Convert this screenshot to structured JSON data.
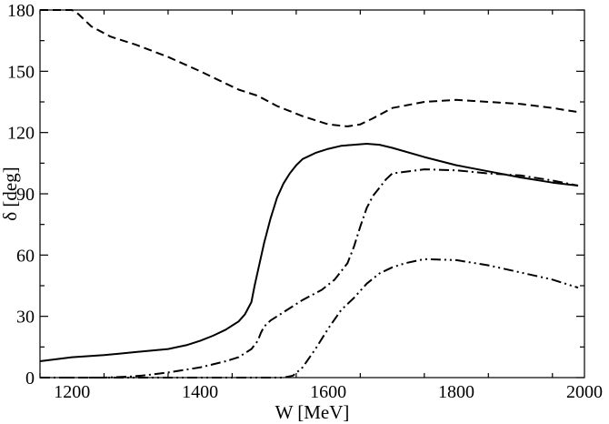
{
  "chart_data": {
    "type": "line",
    "xlabel": "W [MeV]",
    "ylabel": "δ [deg]",
    "xlim": [
      1150,
      2000
    ],
    "ylim": [
      0,
      180
    ],
    "x_ticks": [
      1200,
      1400,
      1600,
      1800,
      2000
    ],
    "y_ticks": [
      0,
      30,
      60,
      90,
      120,
      150,
      180
    ],
    "x_minor_step": 100,
    "y_minor_step": 15,
    "grid": false,
    "legend": "none",
    "series": [
      {
        "style": "dashed",
        "x": [
          1150,
          1200,
          1210,
          1230,
          1260,
          1300,
          1350,
          1400,
          1440,
          1460,
          1490,
          1520,
          1560,
          1600,
          1630,
          1650,
          1670,
          1700,
          1750,
          1800,
          1850,
          1900,
          1950,
          1990
        ],
        "y": [
          180,
          180,
          178,
          172,
          167,
          163,
          157,
          150,
          144,
          141,
          138,
          133,
          128,
          124,
          123,
          124,
          127,
          132,
          135,
          136,
          135,
          134,
          132,
          130
        ]
      },
      {
        "style": "solid",
        "x": [
          1150,
          1200,
          1250,
          1300,
          1350,
          1380,
          1400,
          1420,
          1440,
          1460,
          1470,
          1480,
          1485,
          1490,
          1500,
          1510,
          1520,
          1530,
          1540,
          1550,
          1560,
          1580,
          1600,
          1620,
          1640,
          1660,
          1680,
          1700,
          1750,
          1800,
          1850,
          1900,
          1950,
          1990
        ],
        "y": [
          8,
          10,
          11,
          12.5,
          14,
          16,
          18,
          20.5,
          23.5,
          27.5,
          31,
          37,
          45,
          52,
          66,
          78,
          88,
          95,
          100,
          104,
          107,
          110,
          112,
          113.5,
          114,
          114.5,
          114,
          112.5,
          108,
          104,
          101,
          98,
          95.5,
          94
        ]
      },
      {
        "style": "dash-dot",
        "x": [
          1150,
          1200,
          1250,
          1290,
          1310,
          1350,
          1400,
          1440,
          1460,
          1480,
          1490,
          1495,
          1500,
          1510,
          1530,
          1560,
          1590,
          1610,
          1620,
          1630,
          1640,
          1650,
          1660,
          1670,
          1680,
          1690,
          1700,
          1750,
          1800,
          1850,
          1900,
          1950,
          1990
        ],
        "y": [
          0,
          0,
          0,
          0.5,
          1,
          2.5,
          5,
          8,
          10,
          14,
          18,
          22,
          25,
          28,
          32,
          38,
          43,
          48,
          52,
          56,
          64,
          74,
          83,
          89,
          93,
          97,
          100,
          102,
          101.5,
          100,
          99,
          96.5,
          94
        ]
      },
      {
        "style": "dash-dot-dot",
        "x": [
          1150,
          1200,
          1300,
          1400,
          1500,
          1530,
          1545,
          1560,
          1580,
          1600,
          1620,
          1640,
          1660,
          1680,
          1700,
          1720,
          1750,
          1800,
          1850,
          1900,
          1950,
          1990
        ],
        "y": [
          0,
          0,
          0,
          0,
          0,
          0,
          1,
          5,
          14,
          24,
          33,
          39,
          46,
          51,
          54,
          56,
          58,
          57.5,
          55,
          51.5,
          48,
          44
        ]
      }
    ]
  }
}
